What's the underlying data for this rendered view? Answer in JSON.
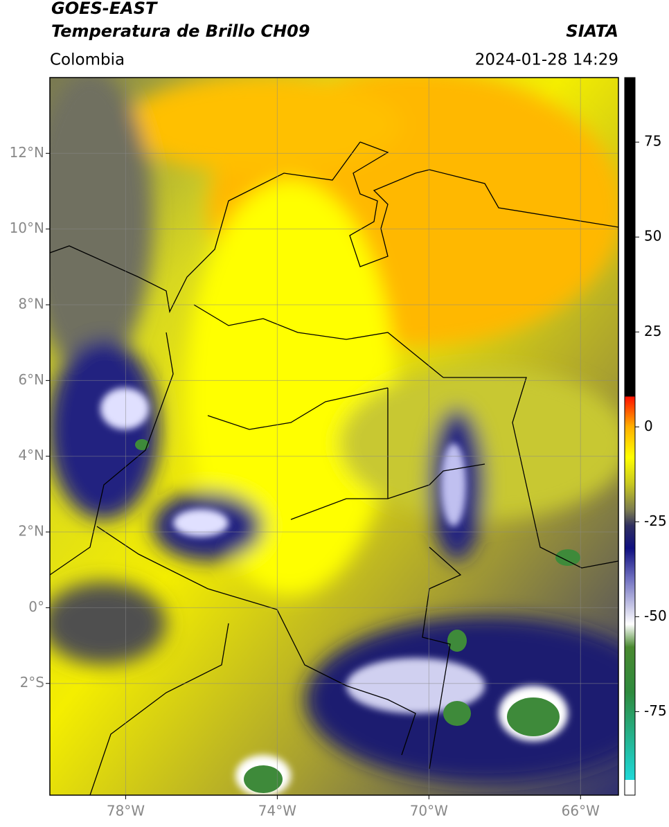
{
  "header": {
    "title": "GOES-EAST",
    "subtitle": "Temperatura de Brillo CH09",
    "org": "SIATA",
    "region": "Colombia",
    "datetime": "2024-01-28 14:29"
  },
  "map": {
    "lon_range": [
      -80,
      -65
    ],
    "lat_range": [
      -4.95,
      14
    ],
    "lon_ticks": [
      {
        "value": -78,
        "label": "78°W"
      },
      {
        "value": -74,
        "label": "74°W"
      },
      {
        "value": -70,
        "label": "70°W"
      },
      {
        "value": -66,
        "label": "66°W"
      }
    ],
    "lat_ticks": [
      {
        "value": 12,
        "label": "12°N"
      },
      {
        "value": 10,
        "label": "10°N"
      },
      {
        "value": 8,
        "label": "8°N"
      },
      {
        "value": 6,
        "label": "6°N"
      },
      {
        "value": 4,
        "label": "4°N"
      },
      {
        "value": 2,
        "label": "2°N"
      },
      {
        "value": 0,
        "label": "0°"
      },
      {
        "value": -2,
        "label": "2°S"
      }
    ]
  },
  "colorbar": {
    "lim": [
      -97,
      92
    ],
    "ticks": [
      75,
      50,
      25,
      0,
      -25,
      -50,
      -75
    ],
    "stops": [
      {
        "value": -97,
        "color": "#ffffff"
      },
      {
        "value": -93,
        "color": "#ffffff"
      },
      {
        "value": -93,
        "color": "#20d8d8"
      },
      {
        "value": -88,
        "color": "#20c8b8"
      },
      {
        "value": -70,
        "color": "#2e8b3e"
      },
      {
        "value": -58,
        "color": "#4a8a30"
      },
      {
        "value": -52,
        "color": "#ffffff"
      },
      {
        "value": -40,
        "color": "#7070c0"
      },
      {
        "value": -32,
        "color": "#101080"
      },
      {
        "value": -26,
        "color": "#303060"
      },
      {
        "value": -22,
        "color": "#7a7a50"
      },
      {
        "value": -15,
        "color": "#c8c820"
      },
      {
        "value": -8,
        "color": "#ffff00"
      },
      {
        "value": 0,
        "color": "#ffb000"
      },
      {
        "value": 8,
        "color": "#ff1000"
      },
      {
        "value": 8,
        "color": "#000000"
      },
      {
        "value": 92,
        "color": "#000000"
      }
    ]
  }
}
